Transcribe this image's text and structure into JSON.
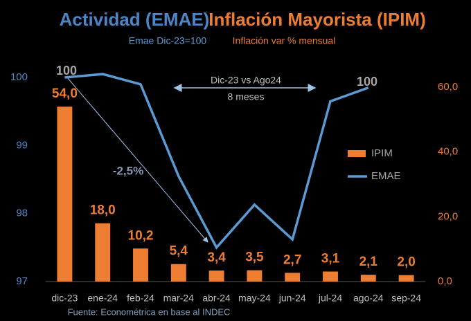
{
  "chart_data": {
    "type": "bar_line",
    "title": [
      "Actividad (EMAE)",
      "Inflación Mayorista (IPIM)"
    ],
    "subtitle": [
      "Emae Dic-23=100",
      "Inflación var % mensual"
    ],
    "categories": [
      "dic-23",
      "ene-24",
      "feb-24",
      "mar-24",
      "abr-24",
      "may-24",
      "jun-24",
      "jul-24",
      "ago-24",
      "sep-24"
    ],
    "series": [
      {
        "name": "IPIM",
        "type": "bar",
        "axis": "y2",
        "color": "#ed7d31",
        "values": [
          54.0,
          18.0,
          10.2,
          5.4,
          3.4,
          3.5,
          2.7,
          3.1,
          2.1,
          2.0
        ],
        "value_labels": [
          "54,0",
          "18,0",
          "10,2",
          "5,4",
          "3,4",
          "3,5",
          "2,7",
          "3,1",
          "2,1",
          "2,0"
        ]
      },
      {
        "name": "EMAE",
        "type": "line",
        "axis": "y",
        "color": "#5b9bd5",
        "values": [
          100.0,
          100.05,
          99.9,
          98.55,
          97.5,
          98.13,
          97.62,
          99.65,
          99.85,
          null
        ]
      }
    ],
    "ylim": [
      97,
      100
    ],
    "yticks": [
      97,
      98,
      99,
      100
    ],
    "y2lim": [
      0,
      63
    ],
    "y2ticks": [
      {
        "value": 0,
        "label": "0,0"
      },
      {
        "value": 20,
        "label": "20,0"
      },
      {
        "value": 40,
        "label": "40,0"
      },
      {
        "value": 60,
        "label": "60,0"
      }
    ],
    "annotations": [
      "100",
      "100",
      "-2,5%",
      "Dic-23 vs Ago24",
      "8 meses"
    ],
    "source": "Fuente: Econométrica en base al INDEC"
  }
}
